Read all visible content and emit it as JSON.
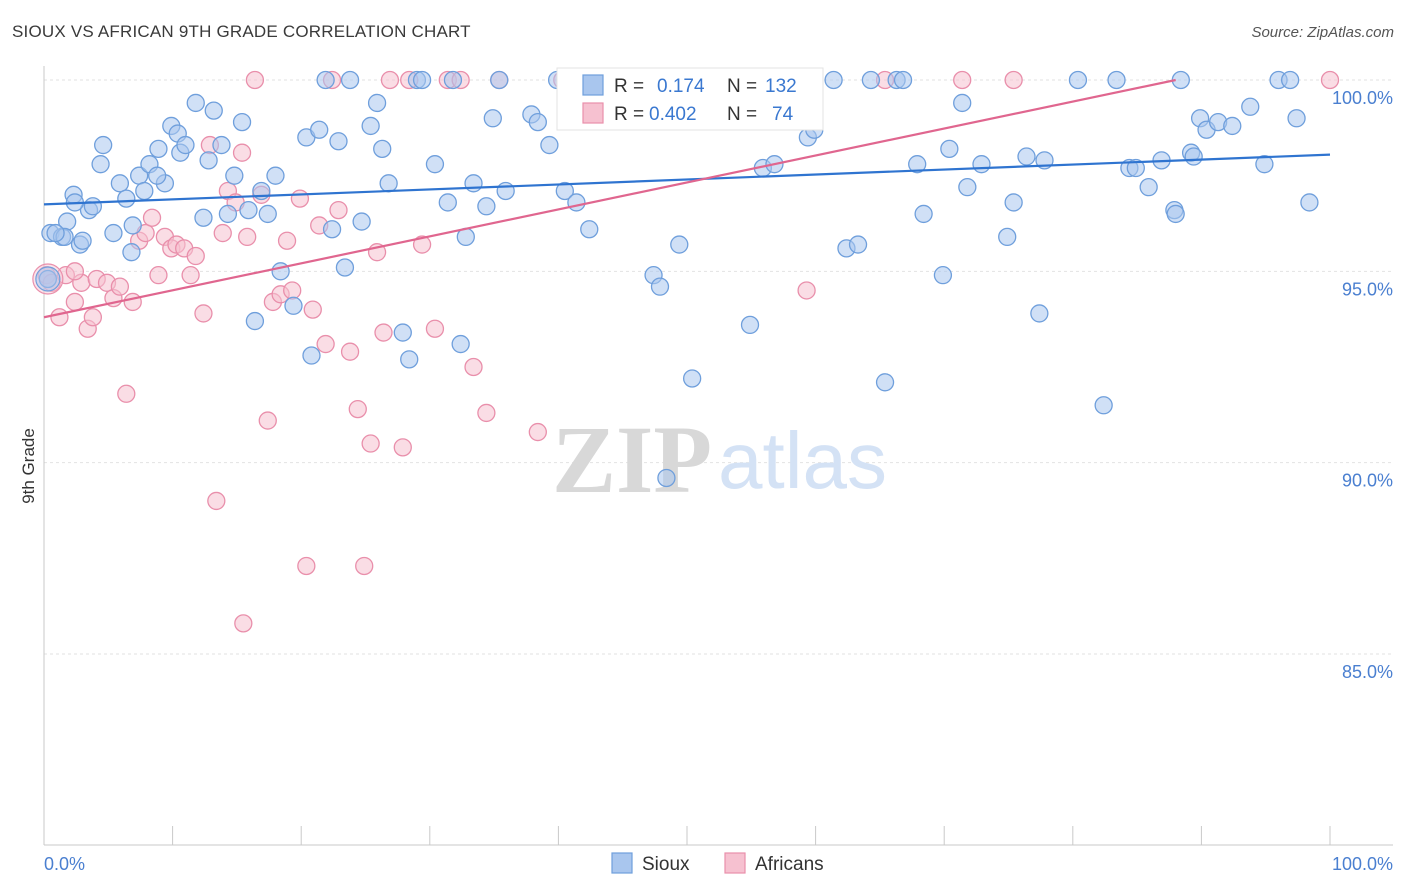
{
  "header": {
    "title": "SIOUX VS AFRICAN 9TH GRADE CORRELATION CHART",
    "source": "Source: ZipAtlas.com"
  },
  "legend": {
    "r_label": "R =",
    "n_label": "N =",
    "entries": [
      {
        "name": "Sioux",
        "r": "0.174",
        "n": "132"
      },
      {
        "name": "Africans",
        "r": "0.402",
        "n": "74"
      }
    ]
  },
  "watermark": {
    "zip": "ZIP",
    "atlas": "atlas"
  },
  "colors": {
    "sioux_fill": "#a9c6ee",
    "sioux_stroke": "#6f9fdc",
    "sioux_line": "#2f74d0",
    "africans_fill": "#f6c1d0",
    "africans_stroke": "#e98fab",
    "africans_line": "#e0668f",
    "value_text": "#3a78d0"
  },
  "chart_data": {
    "type": "scatter",
    "title": "SIOUX VS AFRICAN 9TH GRADE CORRELATION CHART",
    "xlabel": "",
    "ylabel": "9th Grade",
    "xlim": [
      0,
      100
    ],
    "ylim": [
      80.5,
      100.8
    ],
    "x_tick_labels": [
      "0.0%",
      "100.0%"
    ],
    "y_ticks": [
      100,
      95,
      90,
      85
    ],
    "y_tick_labels": [
      "100.0%",
      "95.0%",
      "90.0%",
      "85.0%"
    ],
    "grid": true,
    "legend_position": "top-center",
    "series": [
      {
        "name": "Sioux",
        "r": 0.174,
        "n": 132,
        "trend": {
          "x": [
            0,
            100
          ],
          "y": [
            96.75,
            98.05
          ]
        },
        "points": [
          [
            0.5,
            96.0
          ],
          [
            1.4,
            95.9
          ],
          [
            1.8,
            96.3
          ],
          [
            2.3,
            97.0
          ],
          [
            2.8,
            95.7
          ],
          [
            3.5,
            96.6
          ],
          [
            3.8,
            96.7
          ],
          [
            4.4,
            97.8
          ],
          [
            4.6,
            98.3
          ],
          [
            5.4,
            96.0
          ],
          [
            5.9,
            97.3
          ],
          [
            6.4,
            96.9
          ],
          [
            6.8,
            95.5
          ],
          [
            7.4,
            97.5
          ],
          [
            7.8,
            97.1
          ],
          [
            8.2,
            97.8
          ],
          [
            8.9,
            98.2
          ],
          [
            9.4,
            97.3
          ],
          [
            9.9,
            98.8
          ],
          [
            10.4,
            98.6
          ],
          [
            10.6,
            98.1
          ],
          [
            11.0,
            98.3
          ],
          [
            11.8,
            99.4
          ],
          [
            12.4,
            96.4
          ],
          [
            12.8,
            97.9
          ],
          [
            13.2,
            99.2
          ],
          [
            13.8,
            98.3
          ],
          [
            14.3,
            96.5
          ],
          [
            14.8,
            97.5
          ],
          [
            15.4,
            98.9
          ],
          [
            15.9,
            96.6
          ],
          [
            16.4,
            93.7
          ],
          [
            16.9,
            97.1
          ],
          [
            17.4,
            96.5
          ],
          [
            18.0,
            97.5
          ],
          [
            18.4,
            95.0
          ],
          [
            19.4,
            94.1
          ],
          [
            20.4,
            98.5
          ],
          [
            20.8,
            92.8
          ],
          [
            21.4,
            98.7
          ],
          [
            21.9,
            100.0
          ],
          [
            22.4,
            96.1
          ],
          [
            22.9,
            98.4
          ],
          [
            23.4,
            95.1
          ],
          [
            23.8,
            100.0
          ],
          [
            24.7,
            96.3
          ],
          [
            25.4,
            98.8
          ],
          [
            25.9,
            99.4
          ],
          [
            26.3,
            98.2
          ],
          [
            26.8,
            97.3
          ],
          [
            27.9,
            93.4
          ],
          [
            28.4,
            92.7
          ],
          [
            29.0,
            100.0
          ],
          [
            29.4,
            100.0
          ],
          [
            30.4,
            97.8
          ],
          [
            31.4,
            96.8
          ],
          [
            31.8,
            100.0
          ],
          [
            32.4,
            93.1
          ],
          [
            32.8,
            95.9
          ],
          [
            33.4,
            97.3
          ],
          [
            34.4,
            96.7
          ],
          [
            34.9,
            99.0
          ],
          [
            35.4,
            100.0
          ],
          [
            35.9,
            97.1
          ],
          [
            37.9,
            99.1
          ],
          [
            38.4,
            98.9
          ],
          [
            39.3,
            98.3
          ],
          [
            39.9,
            100.0
          ],
          [
            40.5,
            97.1
          ],
          [
            41.4,
            96.8
          ],
          [
            42.4,
            96.1
          ],
          [
            47.4,
            94.9
          ],
          [
            47.9,
            94.6
          ],
          [
            48.4,
            89.6
          ],
          [
            49.4,
            95.7
          ],
          [
            50.4,
            92.2
          ],
          [
            52.4,
            100.0
          ],
          [
            54.4,
            100.0
          ],
          [
            54.9,
            93.6
          ],
          [
            55.9,
            97.7
          ],
          [
            56.8,
            97.8
          ],
          [
            57.4,
            100.0
          ],
          [
            59.4,
            98.5
          ],
          [
            59.9,
            98.7
          ],
          [
            61.4,
            100.0
          ],
          [
            62.4,
            95.6
          ],
          [
            63.3,
            95.7
          ],
          [
            64.3,
            100.0
          ],
          [
            65.4,
            92.1
          ],
          [
            66.3,
            100.0
          ],
          [
            66.8,
            100.0
          ],
          [
            67.9,
            97.8
          ],
          [
            68.4,
            96.5
          ],
          [
            69.9,
            94.9
          ],
          [
            70.4,
            98.2
          ],
          [
            71.4,
            99.4
          ],
          [
            71.8,
            97.2
          ],
          [
            72.9,
            97.8
          ],
          [
            74.9,
            95.9
          ],
          [
            75.4,
            96.8
          ],
          [
            76.4,
            98.0
          ],
          [
            77.4,
            93.9
          ],
          [
            77.8,
            97.9
          ],
          [
            80.4,
            100.0
          ],
          [
            82.4,
            91.5
          ],
          [
            83.4,
            100.0
          ],
          [
            84.4,
            97.7
          ],
          [
            84.9,
            97.7
          ],
          [
            85.9,
            97.2
          ],
          [
            86.9,
            97.9
          ],
          [
            87.9,
            96.6
          ],
          [
            88.0,
            96.5
          ],
          [
            88.4,
            100.0
          ],
          [
            89.2,
            98.1
          ],
          [
            89.4,
            98.0
          ],
          [
            89.9,
            99.0
          ],
          [
            90.4,
            98.7
          ],
          [
            91.3,
            98.9
          ],
          [
            92.4,
            98.8
          ],
          [
            93.8,
            99.3
          ],
          [
            94.9,
            97.8
          ],
          [
            96.0,
            100.0
          ],
          [
            96.9,
            100.0
          ],
          [
            97.4,
            99.0
          ],
          [
            98.4,
            96.8
          ],
          [
            0.3,
            94.8
          ],
          [
            1.6,
            95.9
          ],
          [
            0.9,
            96.0
          ],
          [
            2.4,
            96.8
          ],
          [
            3.0,
            95.8
          ],
          [
            6.9,
            96.2
          ],
          [
            8.8,
            97.5
          ]
        ]
      },
      {
        "name": "Africans",
        "r": 0.402,
        "n": 74,
        "trend": {
          "x": [
            0,
            88
          ],
          "y": [
            93.8,
            100.0
          ]
        },
        "points": [
          [
            0.2,
            94.9
          ],
          [
            0.6,
            94.7
          ],
          [
            1.2,
            93.8
          ],
          [
            1.7,
            94.9
          ],
          [
            2.4,
            94.2
          ],
          [
            2.9,
            94.7
          ],
          [
            3.4,
            93.5
          ],
          [
            3.8,
            93.8
          ],
          [
            4.1,
            94.8
          ],
          [
            4.9,
            94.7
          ],
          [
            5.4,
            94.3
          ],
          [
            5.9,
            94.6
          ],
          [
            6.4,
            91.8
          ],
          [
            6.9,
            94.2
          ],
          [
            7.4,
            95.8
          ],
          [
            7.9,
            96.0
          ],
          [
            8.4,
            96.4
          ],
          [
            8.9,
            94.9
          ],
          [
            9.4,
            95.9
          ],
          [
            9.9,
            95.6
          ],
          [
            10.3,
            95.7
          ],
          [
            10.9,
            95.6
          ],
          [
            11.4,
            94.9
          ],
          [
            11.8,
            95.4
          ],
          [
            12.4,
            93.9
          ],
          [
            12.9,
            98.3
          ],
          [
            13.4,
            89.0
          ],
          [
            13.9,
            96.0
          ],
          [
            14.3,
            97.1
          ],
          [
            14.9,
            96.8
          ],
          [
            15.4,
            98.1
          ],
          [
            15.8,
            95.9
          ],
          [
            16.4,
            100.0
          ],
          [
            16.9,
            97.0
          ],
          [
            17.4,
            91.1
          ],
          [
            17.8,
            94.2
          ],
          [
            18.4,
            94.4
          ],
          [
            18.9,
            95.8
          ],
          [
            19.3,
            94.5
          ],
          [
            19.9,
            96.9
          ],
          [
            20.4,
            87.3
          ],
          [
            20.9,
            94.0
          ],
          [
            21.4,
            96.2
          ],
          [
            21.9,
            93.1
          ],
          [
            22.4,
            100.0
          ],
          [
            22.9,
            96.6
          ],
          [
            23.8,
            92.9
          ],
          [
            24.4,
            91.4
          ],
          [
            24.9,
            87.3
          ],
          [
            25.4,
            90.5
          ],
          [
            25.9,
            95.5
          ],
          [
            26.4,
            93.4
          ],
          [
            26.9,
            100.0
          ],
          [
            27.9,
            90.4
          ],
          [
            28.4,
            100.0
          ],
          [
            29.4,
            95.7
          ],
          [
            30.4,
            93.5
          ],
          [
            31.4,
            100.0
          ],
          [
            32.4,
            100.0
          ],
          [
            33.4,
            92.5
          ],
          [
            34.4,
            91.3
          ],
          [
            35.4,
            100.0
          ],
          [
            38.4,
            90.8
          ],
          [
            40.3,
            100.0
          ],
          [
            43.4,
            100.0
          ],
          [
            44.4,
            100.0
          ],
          [
            46.4,
            100.0
          ],
          [
            59.3,
            94.5
          ],
          [
            65.4,
            100.0
          ],
          [
            71.4,
            100.0
          ],
          [
            75.4,
            100.0
          ],
          [
            100.0,
            100.0
          ],
          [
            15.5,
            85.8
          ],
          [
            2.4,
            95.0
          ]
        ]
      }
    ]
  }
}
